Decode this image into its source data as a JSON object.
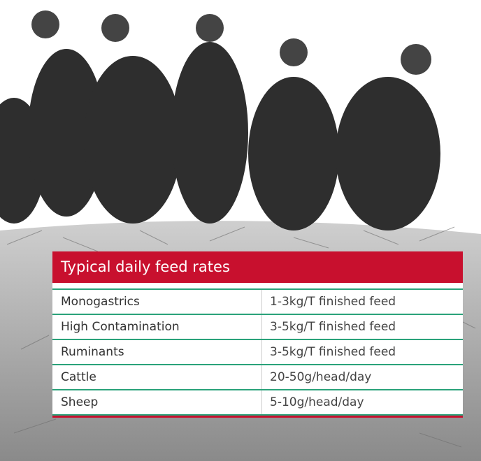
{
  "table": {
    "title": "Typical daily feed rates",
    "rows": [
      [
        "Monogastrics",
        "1-3kg/T finished feed"
      ],
      [
        "High Contamination",
        "3-5kg/T finished feed"
      ],
      [
        "Ruminants",
        "3-5kg/T finished feed"
      ],
      [
        "Cattle",
        "20-50g/head/day"
      ],
      [
        "Sheep",
        "5-10g/head/day"
      ]
    ]
  }
}
